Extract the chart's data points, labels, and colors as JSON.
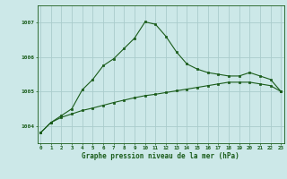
{
  "title": "Graphe pression niveau de la mer (hPa)",
  "background_color": "#cce8e8",
  "grid_color": "#aacccc",
  "line_color": "#1a5c1a",
  "x_labels": [
    "0",
    "1",
    "2",
    "3",
    "4",
    "5",
    "6",
    "7",
    "8",
    "9",
    "10",
    "11",
    "12",
    "13",
    "14",
    "15",
    "16",
    "17",
    "18",
    "19",
    "20",
    "21",
    "22",
    "23"
  ],
  "yticks": [
    1004,
    1005,
    1006,
    1007
  ],
  "ylim": [
    1003.5,
    1007.5
  ],
  "xlim": [
    -0.3,
    23.3
  ],
  "line1_y": [
    1003.8,
    1004.1,
    1004.3,
    1004.5,
    1005.05,
    1005.35,
    1005.75,
    1005.95,
    1006.25,
    1006.55,
    1007.02,
    1006.95,
    1006.6,
    1006.15,
    1005.8,
    1005.65,
    1005.55,
    1005.5,
    1005.45,
    1005.45,
    1005.55,
    1005.45,
    1005.35,
    1005.0
  ],
  "line2_y": [
    1003.8,
    1004.1,
    1004.25,
    1004.35,
    1004.45,
    1004.52,
    1004.6,
    1004.68,
    1004.75,
    1004.82,
    1004.88,
    1004.92,
    1004.97,
    1005.02,
    1005.07,
    1005.12,
    1005.17,
    1005.22,
    1005.27,
    1005.27,
    1005.27,
    1005.22,
    1005.17,
    1005.0
  ]
}
